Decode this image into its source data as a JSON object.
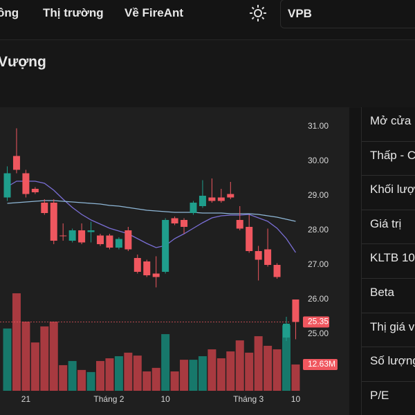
{
  "nav": {
    "items": [
      "ồng",
      "Thị trường",
      "Về FireAnt"
    ],
    "search": "VPB"
  },
  "header": {
    "title": "Vượng"
  },
  "chart": {
    "type": "candlestick",
    "categories": [
      null,
      null,
      "21",
      null,
      null,
      null,
      null,
      null,
      null,
      null,
      null,
      "Tháng 2",
      null,
      null,
      null,
      null,
      null,
      "10",
      null,
      null,
      null,
      null,
      null,
      null,
      null,
      null,
      "Tháng 3",
      null,
      null,
      null,
      null,
      "10"
    ],
    "candles": [
      {
        "o": 28.95,
        "h": 29.85,
        "l": 28.85,
        "c": 29.65
      },
      {
        "o": 30.15,
        "h": 30.95,
        "l": 29.65,
        "c": 29.75
      },
      {
        "o": 29.65,
        "h": 29.75,
        "l": 28.95,
        "c": 29.05
      },
      {
        "o": 29.2,
        "h": 29.25,
        "l": 29.05,
        "c": 29.1
      },
      {
        "o": 28.8,
        "h": 28.9,
        "l": 28.45,
        "c": 28.5
      },
      {
        "o": 28.8,
        "h": 28.9,
        "l": 27.6,
        "c": 27.7
      },
      {
        "o": 27.85,
        "h": 28.2,
        "l": 27.7,
        "c": 27.84
      },
      {
        "o": 27.7,
        "h": 28.05,
        "l": 27.65,
        "c": 28.0
      },
      {
        "o": 28.0,
        "h": 28.2,
        "l": 27.6,
        "c": 27.65
      },
      {
        "o": 27.95,
        "h": 28.25,
        "l": 27.65,
        "c": 28.0
      },
      {
        "o": 27.85,
        "h": 27.9,
        "l": 27.55,
        "c": 27.6
      },
      {
        "o": 27.85,
        "h": 27.9,
        "l": 27.45,
        "c": 27.5
      },
      {
        "o": 27.5,
        "h": 27.8,
        "l": 27.45,
        "c": 27.75
      },
      {
        "o": 28.0,
        "h": 28.1,
        "l": 27.4,
        "c": 27.45
      },
      {
        "o": 27.2,
        "h": 27.3,
        "l": 26.75,
        "c": 26.8
      },
      {
        "o": 27.1,
        "h": 27.15,
        "l": 26.65,
        "c": 26.7
      },
      {
        "o": 26.75,
        "h": 27.25,
        "l": 26.35,
        "c": 26.65
      },
      {
        "o": 26.8,
        "h": 28.35,
        "l": 26.75,
        "c": 28.3
      },
      {
        "o": 28.35,
        "h": 28.4,
        "l": 28.15,
        "c": 28.2
      },
      {
        "o": 28.3,
        "h": 28.35,
        "l": 27.9,
        "c": 28.1
      },
      {
        "o": 28.5,
        "h": 28.85,
        "l": 28.45,
        "c": 28.8
      },
      {
        "o": 28.7,
        "h": 29.45,
        "l": 28.65,
        "c": 29.0
      },
      {
        "o": 28.95,
        "h": 29.5,
        "l": 28.8,
        "c": 28.85
      },
      {
        "o": 28.95,
        "h": 29.2,
        "l": 28.8,
        "c": 28.85
      },
      {
        "o": 29.05,
        "h": 29.4,
        "l": 28.9,
        "c": 28.95
      },
      {
        "o": 28.3,
        "h": 28.7,
        "l": 28.0,
        "c": 28.05
      },
      {
        "o": 28.1,
        "h": 28.45,
        "l": 27.35,
        "c": 27.4
      },
      {
        "o": 27.4,
        "h": 27.55,
        "l": 26.55,
        "c": 27.15
      },
      {
        "o": 27.45,
        "h": 28.05,
        "l": 26.95,
        "c": 27.0
      },
      {
        "o": 27.0,
        "h": 27.05,
        "l": 26.6,
        "c": 26.65
      },
      {
        "o": 24.9,
        "h": 25.5,
        "l": 24.8,
        "c": 25.3
      },
      {
        "o": 26.0,
        "h": 26.0,
        "l": 24.85,
        "c": 25.35
      }
    ],
    "up_color": "#1f9e8c",
    "down_color": "#f0575f",
    "volume_up_color": "#17786b",
    "volume_down_color": "#a83a40",
    "ylim": [
      23.1,
      31.56
    ],
    "yticks": [
      {
        "value": 31,
        "label": "31.00"
      },
      {
        "value": 30,
        "label": "30.00"
      },
      {
        "value": 29,
        "label": "29.00"
      },
      {
        "value": 28,
        "label": "28.00"
      },
      {
        "value": 27,
        "label": "27.00"
      },
      {
        "value": 26,
        "label": "26.00"
      },
      {
        "value": 25,
        "label": "25.00"
      }
    ],
    "volumes": [
      29.9,
      46.8,
      33.2,
      23.2,
      30.9,
      33.2,
      12.3,
      14.3,
      10.0,
      9.0,
      14.3,
      15.6,
      16.6,
      18.3,
      16.9,
      9.3,
      11.0,
      27.2,
      9.3,
      14.9,
      14.9,
      16.6,
      19.9,
      15.6,
      18.9,
      24.2,
      18.3,
      26.2,
      21.6,
      19.9,
      31.5,
      12.63
    ],
    "vlim": [
      0,
      50
    ],
    "volume_label": "12.63M",
    "moving_averages": [
      {
        "color": "#7a6fd6",
        "values": [
          29.26,
          29.42,
          29.42,
          29.42,
          29.36,
          29.16,
          28.9,
          28.66,
          28.46,
          28.3,
          28.18,
          28.06,
          27.98,
          27.9,
          27.76,
          27.62,
          27.5,
          27.56,
          27.76,
          27.9,
          28.06,
          28.22,
          28.36,
          28.42,
          28.44,
          28.44,
          28.46,
          28.36,
          28.26,
          28.06,
          27.76,
          27.36
        ]
      },
      {
        "color": "#8fb8d8",
        "values": [
          28.78,
          28.8,
          28.82,
          28.84,
          28.86,
          28.86,
          28.84,
          28.82,
          28.8,
          28.78,
          28.76,
          28.72,
          28.7,
          28.66,
          28.62,
          28.58,
          28.56,
          28.54,
          28.52,
          28.52,
          28.52,
          28.5,
          28.5,
          28.5,
          28.48,
          28.48,
          28.48,
          28.46,
          28.42,
          28.38,
          28.32,
          28.26
        ]
      }
    ]
  },
  "stats": {
    "rows": [
      "Mở cửa",
      "Thấp - Cao",
      "Khối lượng",
      "Giá trị",
      "KLTB 10",
      "Beta",
      "Thị giá vốn",
      "Số lượng",
      "P/E"
    ]
  }
}
